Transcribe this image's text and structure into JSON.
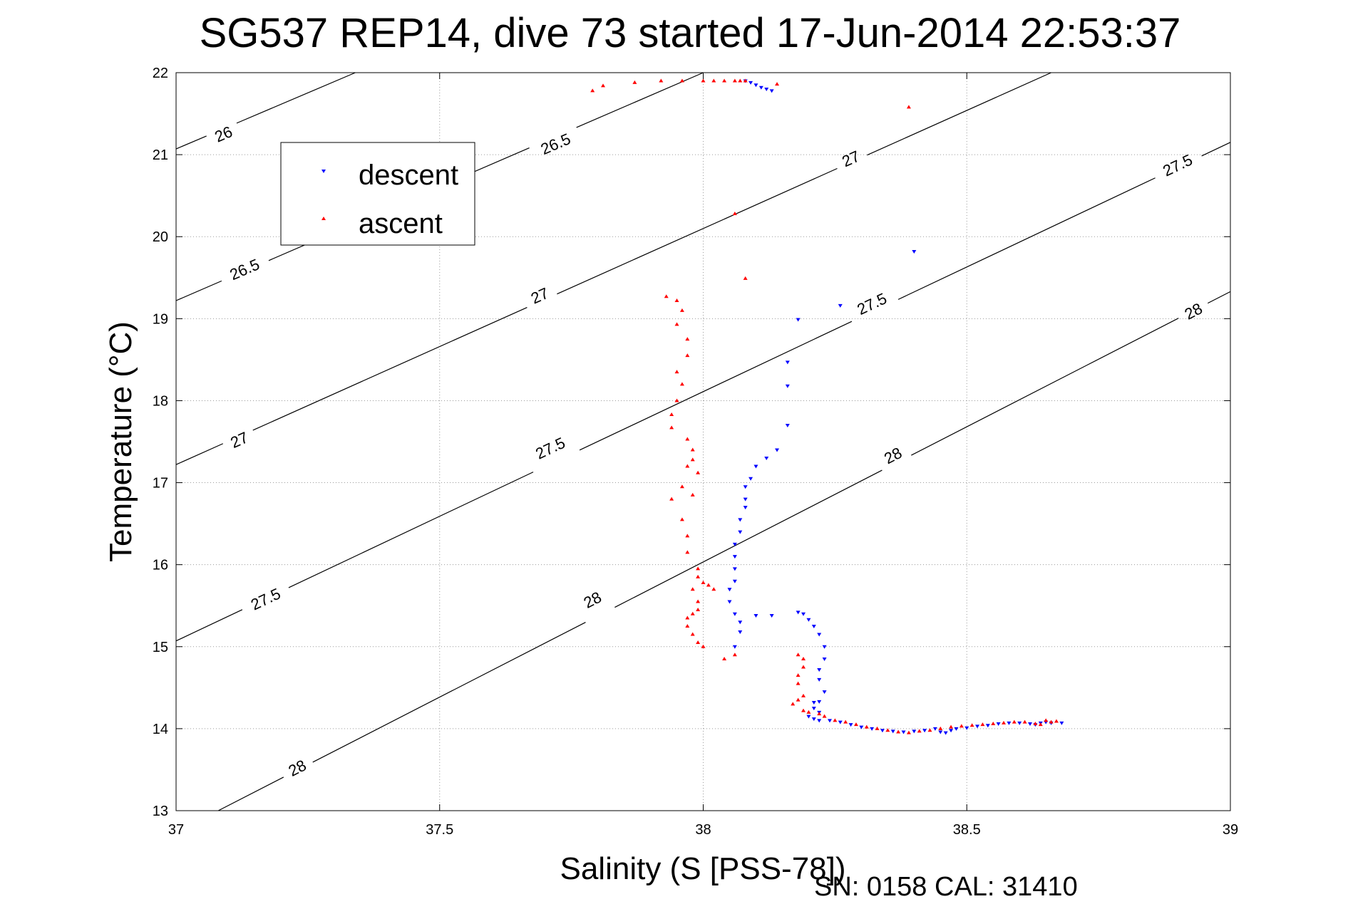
{
  "chart_data": {
    "type": "scatter",
    "title": "SG537 REP14, dive 73 started 17-Jun-2014 22:53:37",
    "xlabel": "Salinity (S [PSS-78])",
    "ylabel": "Temperature (°C)",
    "footer": "SN: 0158  CAL: 31410",
    "xlim": [
      37,
      39
    ],
    "ylim": [
      13,
      22
    ],
    "xticks": [
      37,
      37.5,
      38,
      38.5,
      39
    ],
    "xtick_labels": [
      "37",
      "37.5",
      "38",
      "38.5",
      "39"
    ],
    "yticks": [
      13,
      14,
      15,
      16,
      17,
      18,
      19,
      20,
      21,
      22
    ],
    "ytick_labels": [
      "13",
      "14",
      "15",
      "16",
      "17",
      "18",
      "19",
      "20",
      "21",
      "22"
    ],
    "grid": true,
    "legend_position": "top-left",
    "density_contours": [
      {
        "value": "26",
        "line": [
          [
            37.0,
            21.07
          ],
          [
            37.34,
            22.0
          ]
        ],
        "labels": [
          [
            37.09,
            21.25
          ]
        ]
      },
      {
        "value": "26.5",
        "line": [
          [
            37.0,
            19.22
          ],
          [
            38.0,
            22.0
          ]
        ],
        "labels": [
          [
            37.13,
            19.6
          ],
          [
            37.72,
            21.13
          ]
        ]
      },
      {
        "value": "27",
        "line": [
          [
            37.0,
            17.22
          ],
          [
            38.66,
            22.0
          ]
        ],
        "labels": [
          [
            37.12,
            17.52
          ],
          [
            37.69,
            19.28
          ],
          [
            38.28,
            20.95
          ]
        ]
      },
      {
        "value": "27.5",
        "line": [
          [
            37.0,
            15.07
          ],
          [
            39.0,
            21.15
          ]
        ],
        "labels": [
          [
            37.17,
            15.58
          ],
          [
            37.71,
            17.42
          ],
          [
            38.32,
            19.18
          ],
          [
            38.9,
            20.87
          ]
        ]
      },
      {
        "value": "28",
        "line": [
          [
            37.08,
            13.0
          ],
          [
            39.0,
            19.33
          ]
        ],
        "labels": [
          [
            37.23,
            13.52
          ],
          [
            37.79,
            15.57
          ],
          [
            38.36,
            17.33
          ],
          [
            38.93,
            19.09
          ]
        ]
      }
    ],
    "series": [
      {
        "name": "descent",
        "color": "#0000ff",
        "marker": "triangle-down",
        "points": [
          [
            38.08,
            21.9
          ],
          [
            38.09,
            21.88
          ],
          [
            38.1,
            21.85
          ],
          [
            38.11,
            21.82
          ],
          [
            38.12,
            21.8
          ],
          [
            38.13,
            21.78
          ],
          [
            38.4,
            19.82
          ],
          [
            38.26,
            19.16
          ],
          [
            38.18,
            18.99
          ],
          [
            38.16,
            18.47
          ],
          [
            38.16,
            18.18
          ],
          [
            38.16,
            17.7
          ],
          [
            38.14,
            17.4
          ],
          [
            38.12,
            17.3
          ],
          [
            38.1,
            17.2
          ],
          [
            38.09,
            17.05
          ],
          [
            38.08,
            16.95
          ],
          [
            38.08,
            16.8
          ],
          [
            38.08,
            16.7
          ],
          [
            38.07,
            16.55
          ],
          [
            38.07,
            16.4
          ],
          [
            38.06,
            16.25
          ],
          [
            38.06,
            16.1
          ],
          [
            38.06,
            15.95
          ],
          [
            38.06,
            15.8
          ],
          [
            38.05,
            15.7
          ],
          [
            38.05,
            15.55
          ],
          [
            38.06,
            15.4
          ],
          [
            38.07,
            15.3
          ],
          [
            38.07,
            15.18
          ],
          [
            38.06,
            15.0
          ],
          [
            38.1,
            15.38
          ],
          [
            38.13,
            15.38
          ],
          [
            38.18,
            15.42
          ],
          [
            38.19,
            15.4
          ],
          [
            38.2,
            15.33
          ],
          [
            38.21,
            15.25
          ],
          [
            38.22,
            15.15
          ],
          [
            38.23,
            15.0
          ],
          [
            38.23,
            14.85
          ],
          [
            38.22,
            14.72
          ],
          [
            38.22,
            14.6
          ],
          [
            38.23,
            14.45
          ],
          [
            38.22,
            14.33
          ],
          [
            38.21,
            14.32
          ],
          [
            38.21,
            14.25
          ],
          [
            38.22,
            14.2
          ],
          [
            38.2,
            14.15
          ],
          [
            38.21,
            14.12
          ],
          [
            38.22,
            14.1
          ],
          [
            38.24,
            14.1
          ],
          [
            38.26,
            14.08
          ],
          [
            38.28,
            14.05
          ],
          [
            38.3,
            14.02
          ],
          [
            38.32,
            14.0
          ],
          [
            38.34,
            13.98
          ],
          [
            38.36,
            13.97
          ],
          [
            38.38,
            13.96
          ],
          [
            38.4,
            13.97
          ],
          [
            38.42,
            13.98
          ],
          [
            38.44,
            14.0
          ],
          [
            38.45,
            13.96
          ],
          [
            38.46,
            13.95
          ],
          [
            38.47,
            13.98
          ],
          [
            38.48,
            14.0
          ],
          [
            38.5,
            14.01
          ],
          [
            38.52,
            14.03
          ],
          [
            38.54,
            14.04
          ],
          [
            38.56,
            14.06
          ],
          [
            38.58,
            14.07
          ],
          [
            38.6,
            14.07
          ],
          [
            38.62,
            14.06
          ],
          [
            38.63,
            14.05
          ],
          [
            38.64,
            14.07
          ],
          [
            38.65,
            14.08
          ],
          [
            38.66,
            14.07
          ],
          [
            38.68,
            14.07
          ]
        ]
      },
      {
        "name": "ascent",
        "color": "#ff0000",
        "marker": "triangle-up",
        "points": [
          [
            37.79,
            21.78
          ],
          [
            37.81,
            21.84
          ],
          [
            37.87,
            21.88
          ],
          [
            37.92,
            21.9
          ],
          [
            37.96,
            21.9
          ],
          [
            38.0,
            21.9
          ],
          [
            38.02,
            21.9
          ],
          [
            38.04,
            21.9
          ],
          [
            38.06,
            21.9
          ],
          [
            38.07,
            21.9
          ],
          [
            38.08,
            21.9
          ],
          [
            38.14,
            21.86
          ],
          [
            38.39,
            21.58
          ],
          [
            38.06,
            20.28
          ],
          [
            38.08,
            19.49
          ],
          [
            37.93,
            19.27
          ],
          [
            37.95,
            19.22
          ],
          [
            37.96,
            19.1
          ],
          [
            37.95,
            18.93
          ],
          [
            37.97,
            18.75
          ],
          [
            37.97,
            18.55
          ],
          [
            37.95,
            18.35
          ],
          [
            37.96,
            18.2
          ],
          [
            37.95,
            18.0
          ],
          [
            37.94,
            17.83
          ],
          [
            37.94,
            17.67
          ],
          [
            37.97,
            17.53
          ],
          [
            37.98,
            17.4
          ],
          [
            37.98,
            17.28
          ],
          [
            37.97,
            17.2
          ],
          [
            37.99,
            17.12
          ],
          [
            37.96,
            16.95
          ],
          [
            37.98,
            16.85
          ],
          [
            37.94,
            16.8
          ],
          [
            37.96,
            16.55
          ],
          [
            37.97,
            16.35
          ],
          [
            37.97,
            16.15
          ],
          [
            37.99,
            15.95
          ],
          [
            37.99,
            15.85
          ],
          [
            38.0,
            15.78
          ],
          [
            38.01,
            15.75
          ],
          [
            38.02,
            15.7
          ],
          [
            37.98,
            15.7
          ],
          [
            37.99,
            15.55
          ],
          [
            37.99,
            15.45
          ],
          [
            37.98,
            15.4
          ],
          [
            37.97,
            15.35
          ],
          [
            37.97,
            15.25
          ],
          [
            37.98,
            15.15
          ],
          [
            37.99,
            15.05
          ],
          [
            38.0,
            15.0
          ],
          [
            38.04,
            14.85
          ],
          [
            38.06,
            14.9
          ],
          [
            38.18,
            14.9
          ],
          [
            38.19,
            14.85
          ],
          [
            38.19,
            14.75
          ],
          [
            38.18,
            14.65
          ],
          [
            38.18,
            14.55
          ],
          [
            38.19,
            14.4
          ],
          [
            38.18,
            14.35
          ],
          [
            38.17,
            14.3
          ],
          [
            38.19,
            14.22
          ],
          [
            38.2,
            14.2
          ],
          [
            38.22,
            14.18
          ],
          [
            38.23,
            14.15
          ],
          [
            38.25,
            14.1
          ],
          [
            38.27,
            14.08
          ],
          [
            38.29,
            14.05
          ],
          [
            38.31,
            14.02
          ],
          [
            38.33,
            14.0
          ],
          [
            38.35,
            13.98
          ],
          [
            38.37,
            13.96
          ],
          [
            38.39,
            13.95
          ],
          [
            38.41,
            13.97
          ],
          [
            38.43,
            13.98
          ],
          [
            38.45,
            14.0
          ],
          [
            38.47,
            14.02
          ],
          [
            38.49,
            14.03
          ],
          [
            38.51,
            14.04
          ],
          [
            38.53,
            14.05
          ],
          [
            38.55,
            14.06
          ],
          [
            38.57,
            14.07
          ],
          [
            38.59,
            14.08
          ],
          [
            38.61,
            14.08
          ],
          [
            38.63,
            14.06
          ],
          [
            38.64,
            14.05
          ],
          [
            38.65,
            14.1
          ],
          [
            38.66,
            14.08
          ],
          [
            38.67,
            14.09
          ]
        ]
      }
    ]
  }
}
